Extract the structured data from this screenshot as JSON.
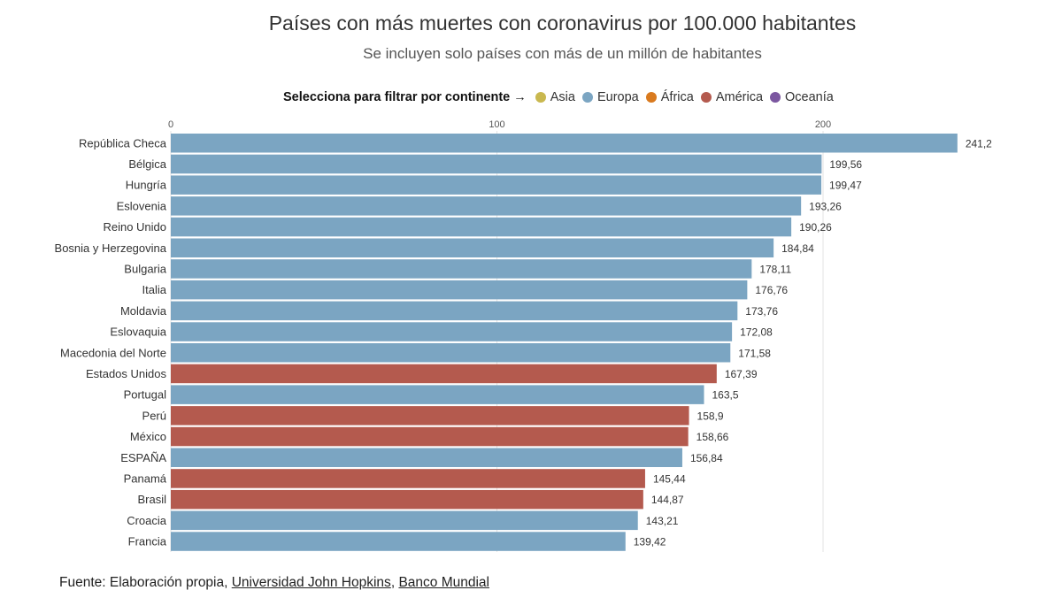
{
  "title": "Países con más muertes con coronavirus por 100.000 habitantes",
  "subtitle": "Se incluyen solo países con más de un millón de habitantes",
  "legend": {
    "prompt": "Selecciona para filtrar por continente →",
    "items": [
      {
        "label": "Asia",
        "color": "#c9b84f"
      },
      {
        "label": "Europa",
        "color": "#7ba5c2"
      },
      {
        "label": "África",
        "color": "#d97a1e"
      },
      {
        "label": "América",
        "color": "#b45a4e"
      },
      {
        "label": "Oceanía",
        "color": "#7b57a0"
      }
    ]
  },
  "source": {
    "prefix": "Fuente: Elaboración propia, ",
    "link1": "Universidad John Hopkins",
    "separator": ", ",
    "link2": "Banco Mundial"
  },
  "chart_data": {
    "type": "bar",
    "orientation": "horizontal",
    "title": "Países con más muertes con coronavirus por 100.000 habitantes",
    "subtitle": "Se incluyen solo países con más de un millón de habitantes",
    "xlim": [
      0,
      250
    ],
    "xticks": [
      0,
      100,
      200
    ],
    "xtick_labels": [
      "0",
      "100",
      "200"
    ],
    "axis_position": "top",
    "grid": true,
    "categories": [
      "República Checa",
      "Bélgica",
      "Hungría",
      "Eslovenia",
      "Reino Unido",
      "Bosnia y Herzegovina",
      "Bulgaria",
      "Italia",
      "Moldavia",
      "Eslovaquia",
      "Macedonia del Norte",
      "Estados Unidos",
      "Portugal",
      "Perú",
      "México",
      "ESPAÑA",
      "Panamá",
      "Brasil",
      "Croacia",
      "Francia"
    ],
    "values": [
      241.2,
      199.56,
      199.47,
      193.26,
      190.26,
      184.84,
      178.11,
      176.76,
      173.76,
      172.08,
      171.58,
      167.39,
      163.5,
      158.9,
      158.66,
      156.84,
      145.44,
      144.87,
      143.21,
      139.42
    ],
    "value_labels": [
      "241,2",
      "199,56",
      "199,47",
      "193,26",
      "190,26",
      "184,84",
      "178,11",
      "176,76",
      "173,76",
      "172,08",
      "171,58",
      "167,39",
      "163,5",
      "158,9",
      "158,66",
      "156,84",
      "145,44",
      "144,87",
      "143,21",
      "139,42"
    ],
    "continents": [
      "Europa",
      "Europa",
      "Europa",
      "Europa",
      "Europa",
      "Europa",
      "Europa",
      "Europa",
      "Europa",
      "Europa",
      "Europa",
      "América",
      "Europa",
      "América",
      "América",
      "Europa",
      "América",
      "América",
      "Europa",
      "Europa"
    ],
    "colors": {
      "Asia": "#c9b84f",
      "Europa": "#7ba5c2",
      "África": "#d97a1e",
      "América": "#b45a4e",
      "Oceanía": "#7b57a0"
    }
  }
}
